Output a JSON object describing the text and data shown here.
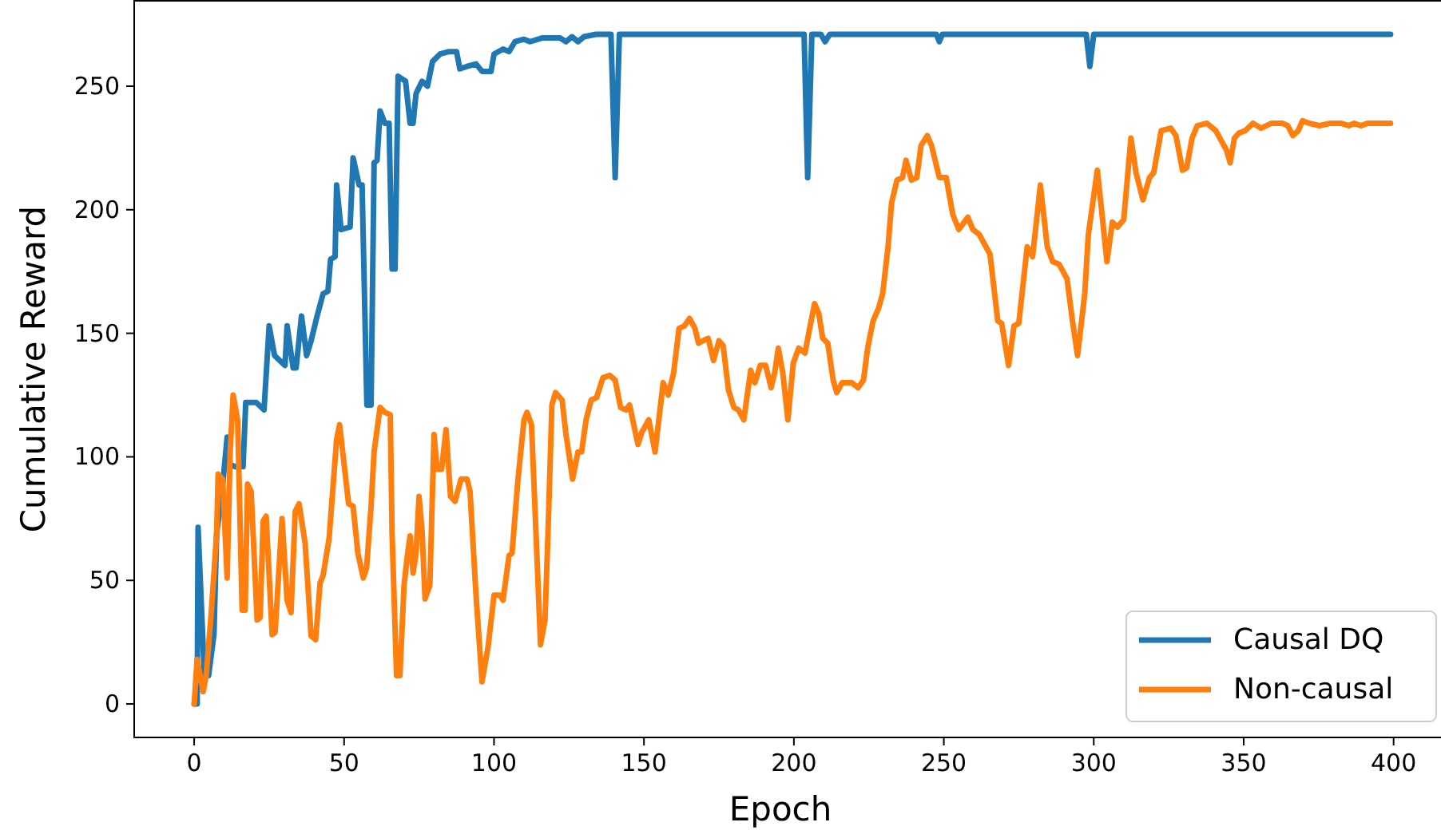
{
  "chart_data": {
    "type": "line",
    "xlabel": "Epoch",
    "ylabel": "Cumulative Reward",
    "xlim": [
      -20,
      419
    ],
    "ylim": [
      -13.55,
      284.55
    ],
    "xticks": [
      0,
      50,
      100,
      150,
      200,
      250,
      300,
      350,
      400
    ],
    "yticks": [
      0,
      50,
      100,
      150,
      200,
      250
    ],
    "grid": false,
    "legend": "bottom right",
    "line_style": "solid",
    "marker": "none",
    "series": [
      {
        "name": "Causal DQ",
        "color": "#1f77b4",
        "x": [
          0,
          1,
          1.3,
          3.4,
          4.8,
          6.6,
          7.5,
          9.3,
          11,
          12,
          13.7,
          16.3,
          17.2,
          20.7,
          23.3,
          25,
          26.8,
          30.3,
          31,
          33,
          34,
          35.8,
          37.5,
          39,
          41,
          43,
          44.6,
          45.5,
          47,
          47.5,
          49,
          52,
          53,
          55,
          56,
          57.6,
          59,
          60,
          61,
          62,
          63.6,
          65,
          66,
          67,
          68,
          70.5,
          72,
          73,
          74,
          76,
          77.8,
          79.5,
          82,
          85,
          87.5,
          88.6,
          91,
          94,
          96,
          99,
          100,
          103,
          105,
          107,
          110,
          112,
          116,
          122,
          124,
          126,
          128,
          130,
          134,
          139,
          140.4,
          141.8,
          203.4,
          204.6,
          206,
          209,
          210.4,
          212,
          247.5,
          248.5,
          249.5,
          297.5,
          298.7,
          300,
          399
        ],
        "values": [
          0,
          0,
          71.5,
          11.5,
          11.5,
          28,
          69,
          86,
          108,
          97,
          96,
          96,
          122,
          122,
          119,
          153,
          141,
          137,
          153,
          136,
          136,
          157,
          141,
          147,
          157,
          166,
          167,
          180,
          181,
          210,
          192,
          193,
          221,
          210,
          210,
          121,
          121,
          219,
          220,
          240,
          235,
          235,
          176,
          176,
          254,
          252,
          235,
          235,
          247,
          252,
          250,
          260,
          263,
          264,
          264,
          257,
          258,
          259,
          256,
          256,
          263,
          265,
          264,
          268,
          269,
          268,
          269.5,
          269.5,
          268,
          270,
          268,
          270,
          271,
          271,
          213,
          271,
          271,
          213,
          271,
          271,
          268,
          271,
          271,
          268,
          271,
          271,
          258,
          271,
          271
        ]
      },
      {
        "name": "Non-causal",
        "color": "#ff7f0e",
        "x": [
          0,
          1,
          3,
          4,
          5.7,
          7.5,
          8,
          9.5,
          11,
          12,
          13,
          14.5,
          16,
          17,
          17.8,
          19,
          21,
          22,
          23,
          24,
          26,
          27,
          29.3,
          31,
          32.3,
          33.7,
          35,
          37,
          39,
          40.5,
          42,
          43,
          45,
          46,
          47.5,
          48.5,
          50,
          51.5,
          53,
          54.6,
          56.4,
          57.5,
          59,
          60,
          62,
          63.6,
          65.4,
          66,
          67.5,
          68.6,
          70,
          71,
          72,
          73,
          74,
          75,
          76,
          77,
          78.6,
          80,
          81,
          82.5,
          84,
          85.5,
          87,
          89,
          91,
          92,
          94,
          96,
          98,
          100,
          102,
          103,
          105,
          106,
          108,
          110,
          111,
          112.5,
          114,
          115.5,
          117,
          118,
          119.3,
          120.5,
          122.7,
          123.9,
          126.2,
          128,
          129.2,
          130.7,
          132.4,
          134.2,
          136.3,
          138.6,
          140.4,
          142.2,
          144,
          145.2,
          148,
          149.3,
          151.6,
          153.7,
          156.4,
          158.1,
          159.9,
          161.7,
          163.5,
          165.2,
          167,
          168.2,
          169.7,
          171.4,
          173.2,
          175,
          176.4,
          178.2,
          180,
          181.5,
          183.3,
          185.6,
          187,
          188.8,
          190.6,
          192.4,
          193.6,
          194.8,
          196.3,
          198,
          199.8,
          201.6,
          203.7,
          205.1,
          206.9,
          208.3,
          209.6,
          211.3,
          213.1,
          214.3,
          216.1,
          219.3,
          221.4,
          223.2,
          224.6,
          226.4,
          228.2,
          229.6,
          231.4,
          232.6,
          234.4,
          236.2,
          237.4,
          239.2,
          241,
          242.4,
          244.5,
          245.9,
          248.5,
          250.8,
          253,
          255,
          258,
          259.7,
          261.8,
          265.4,
          268,
          269.3,
          271.6,
          273.4,
          275,
          277.8,
          279.6,
          282.2,
          284.5,
          286.3,
          288.4,
          289.3,
          291.1,
          292.9,
          294.6,
          297,
          298.2,
          301.2,
          302.6,
          304.4,
          306.2,
          307.9,
          310,
          312.4,
          314.1,
          316.4,
          318.6,
          320,
          322.5,
          325.7,
          327.4,
          329.6,
          331,
          332.8,
          334.5,
          337.7,
          340.7,
          342.5,
          344.3,
          345.5,
          346.9,
          348.4,
          350.5,
          353.1,
          355.8,
          359.3,
          362.9,
          364.7,
          366.4,
          368.2,
          369.6,
          371.8,
          375.3,
          378.9,
          382.4,
          385.1,
          386.8,
          389.1,
          391.3,
          399
        ],
        "values": [
          0,
          18,
          5,
          11.5,
          37,
          69,
          93,
          91,
          51,
          102,
          125,
          115,
          38,
          38,
          89,
          86,
          34,
          35,
          74,
          76,
          28,
          29,
          75,
          42,
          37,
          78,
          81,
          65,
          27.5,
          26,
          49,
          52,
          67,
          83,
          107,
          113,
          97,
          81,
          80,
          61,
          51,
          55,
          80,
          102,
          120,
          118,
          117,
          69,
          11.5,
          11.5,
          48,
          59,
          68,
          53,
          61,
          84,
          70,
          42.5,
          48,
          109,
          95,
          95,
          111,
          84,
          82,
          91,
          91,
          86,
          44,
          9,
          23,
          44,
          44,
          42,
          60,
          61,
          91,
          115,
          118,
          113,
          69,
          24,
          34,
          69,
          121,
          126,
          123,
          110,
          91,
          102,
          102,
          115,
          123,
          124,
          132,
          133,
          131,
          120,
          119,
          121,
          105,
          110,
          115,
          102,
          130,
          125,
          134,
          152,
          153,
          156,
          152,
          146,
          147,
          148,
          139,
          147,
          145,
          127,
          120,
          119,
          115,
          135,
          130,
          137,
          137,
          128,
          134,
          144,
          134,
          115,
          138,
          144,
          142,
          151,
          162,
          158,
          148,
          146,
          131,
          126,
          130,
          130,
          128,
          131,
          144,
          155,
          160,
          166,
          185,
          203,
          212,
          213,
          220,
          212,
          213,
          226,
          230,
          226,
          213,
          213,
          198,
          192,
          197,
          192,
          190,
          182,
          155,
          154,
          137,
          153,
          154,
          185,
          181,
          210,
          185,
          179,
          178,
          176,
          172,
          155,
          141,
          166,
          190,
          216,
          200,
          179,
          195,
          193,
          196,
          229,
          215,
          204,
          213,
          215,
          232,
          233,
          230,
          216,
          217,
          229,
          234,
          235,
          232,
          228,
          224,
          219,
          229,
          231,
          232,
          235,
          233,
          235,
          235,
          234,
          230,
          232,
          236,
          235,
          234,
          235,
          235,
          234,
          235,
          234,
          235,
          235
        ]
      }
    ]
  }
}
